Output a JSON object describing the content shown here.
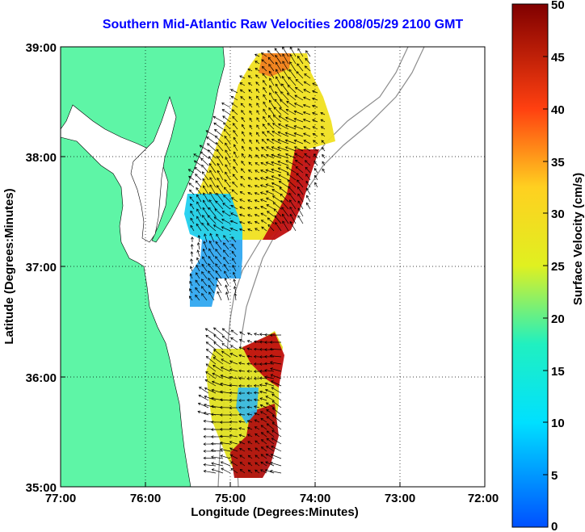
{
  "title": "Southern Mid-Atlantic Raw Velocities 2008/05/29 2100 GMT",
  "xaxis": {
    "label": "Longitude (Degrees:Minutes)",
    "ticks": [
      "77:00",
      "76:00",
      "75:00",
      "74:00",
      "73:00",
      "72:00"
    ],
    "values": [
      -77,
      -76,
      -75,
      -74,
      -73,
      -72
    ]
  },
  "yaxis": {
    "label": "Latitude (Degrees:Minutes)",
    "ticks": [
      "39:00",
      "38:00",
      "37:00",
      "36:00",
      "35:00"
    ],
    "values": [
      39,
      38,
      37,
      36,
      35
    ]
  },
  "colorbar": {
    "label": "Surface Velocity (cm/s)",
    "ticks": [
      "50",
      "45",
      "40",
      "35",
      "30",
      "25",
      "20",
      "15",
      "10",
      "5",
      "0"
    ],
    "range": [
      0,
      50
    ],
    "units": "cm/s"
  },
  "colors": {
    "land": "#5ef5a6",
    "water": "#ffffff",
    "title": "#0000ff",
    "grid": "#000000",
    "isobath": "#8c8c8c"
  },
  "grid": "dotted",
  "domain": {
    "lon": [
      -77,
      -72
    ],
    "lat": [
      35,
      39
    ]
  }
}
